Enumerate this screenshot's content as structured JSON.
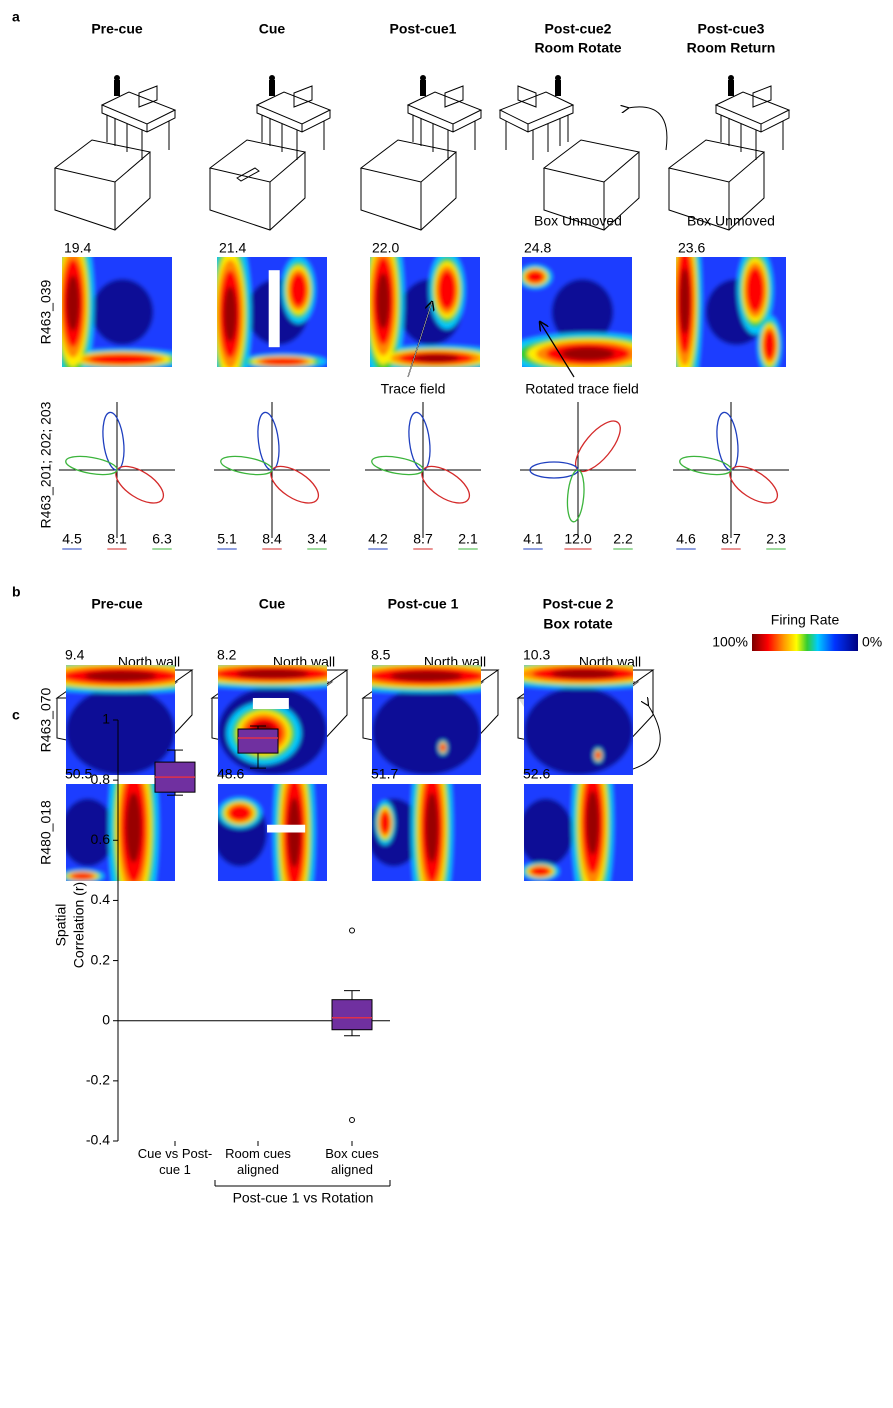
{
  "panel_a": {
    "label": "a",
    "titles": [
      [
        "Pre-cue"
      ],
      [
        "Cue"
      ],
      [
        "Post-cue1"
      ],
      [
        "Post-cue2",
        "Room Rotate"
      ],
      [
        "Post-cue3",
        "Room Return"
      ]
    ],
    "box_notes": [
      "Box Unmoved",
      "Box Unmoved"
    ],
    "rate_maps": {
      "name": "R463_039",
      "peaks": [
        "19.4",
        "21.4",
        "22.0",
        "24.8",
        "23.6"
      ],
      "annotations": [
        "Trace field",
        "Rotated trace field"
      ]
    },
    "polar_plots": {
      "name": "R463_201; 202; 203",
      "colors": [
        "#1f3fbf",
        "#d42a2a",
        "#3cb43c"
      ],
      "peaks": [
        [
          "4.5",
          "8.1",
          "6.3"
        ],
        [
          "5.1",
          "8.4",
          "3.4"
        ],
        [
          "4.2",
          "8.7",
          "2.1"
        ],
        [
          "4.1",
          "12.0",
          "2.2"
        ],
        [
          "4.6",
          "8.7",
          "2.3"
        ]
      ]
    }
  },
  "panel_b": {
    "label": "b",
    "titles": [
      [
        "Pre-cue"
      ],
      [
        "Cue"
      ],
      [
        "Post-cue 1"
      ],
      [
        "Post-cue 2",
        "Box rotate"
      ]
    ],
    "wall_labels": [
      "North wall",
      "North wall",
      "North wall",
      "North wall"
    ],
    "colorbar": {
      "title": "Firing Rate",
      "max": "100%",
      "min": "0%"
    },
    "rate_maps": [
      {
        "name": "R463_070",
        "peaks": [
          "9.4",
          "8.2",
          "8.5",
          "10.3"
        ]
      },
      {
        "name": "R480_018",
        "peaks": [
          "50.5",
          "48.6",
          "51.7",
          "52.6"
        ]
      }
    ]
  },
  "chart_data": {
    "type": "box",
    "panel_label": "c",
    "ylabel": [
      "Spatial",
      "Correlation (r)"
    ],
    "categories": [
      "Cue vs Post-cue 1",
      "Room cues aligned",
      "Box cues aligned"
    ],
    "group_label": "Post-cue 1 vs Rotation",
    "boxes": [
      {
        "whislo": 0.75,
        "q1": 0.76,
        "med": 0.81,
        "q3": 0.86,
        "whishi": 0.9,
        "fliers": []
      },
      {
        "whislo": 0.84,
        "q1": 0.89,
        "med": 0.94,
        "q3": 0.97,
        "whishi": 0.98,
        "fliers": []
      },
      {
        "whislo": -0.05,
        "q1": -0.03,
        "med": 0.01,
        "q3": 0.07,
        "whishi": 0.1,
        "fliers": [
          0.3,
          -0.33
        ]
      }
    ],
    "color": "#7030a0",
    "median_color": "#e0304a",
    "ylim": [
      -0.4,
      1
    ],
    "yticks": [
      -0.4,
      -0.2,
      0,
      0.2,
      0.4,
      0.6,
      0.8,
      1
    ],
    "zero_line": true
  }
}
